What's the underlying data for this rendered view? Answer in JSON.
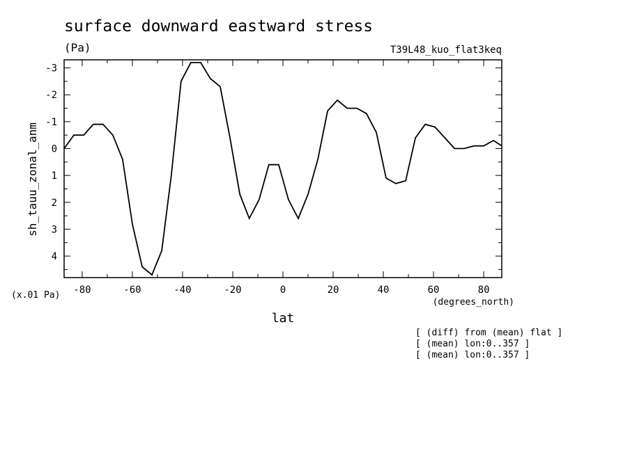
{
  "chart_data": {
    "type": "line",
    "title": "surface downward eastward stress",
    "units": "(Pa)",
    "experiment": "T39L48_kuo_flat3keq",
    "ylabel": "sh_tauu_zonal_anm",
    "scale_note": "(x.01 Pa)",
    "xlabel": "lat",
    "xunits": "(degrees_north)",
    "notes": [
      "[ (diff) from (mean) flat ]",
      "[ (mean) lon:0..357 ]",
      "[ (mean) lon:0..357 ]"
    ],
    "xlim": [
      -87.2,
      87.2
    ],
    "ylim": [
      -3.3,
      4.8
    ],
    "y_inverted": true,
    "xticks": [
      -80,
      -60,
      -40,
      -20,
      0,
      20,
      40,
      60,
      80
    ],
    "yticks": [
      -3,
      -2,
      -1,
      0,
      1,
      2,
      3,
      4
    ],
    "xtick_labels": [
      "-80",
      "-60",
      "-40",
      "-20",
      "0",
      "20",
      "40",
      "60",
      "80"
    ],
    "ytick_labels": [
      "-3",
      "-2",
      "-1",
      "0",
      "1",
      "2",
      "3",
      "4"
    ],
    "series": [
      {
        "x": [
          -87.2,
          -83.3,
          -79.4,
          -75.6,
          -71.7,
          -67.8,
          -63.9,
          -60.0,
          -56.1,
          -52.2,
          -48.3,
          -44.5,
          -40.6,
          -36.7,
          -32.8,
          -28.9,
          -25.0,
          -21.1,
          -17.2,
          -13.4,
          -9.5,
          -5.6,
          -1.7,
          2.2,
          6.1,
          10.0,
          13.9,
          17.8,
          21.7,
          25.6,
          29.5,
          33.3,
          37.2,
          41.1,
          45.0,
          48.9,
          52.8,
          56.7,
          60.6,
          64.5,
          68.4,
          72.2,
          76.1,
          80.0,
          83.9,
          87.2
        ],
        "y": [
          0.0,
          -0.5,
          -0.5,
          -0.9,
          -0.9,
          -0.5,
          0.4,
          2.8,
          4.4,
          4.7,
          3.8,
          1.0,
          -2.5,
          -3.2,
          -3.2,
          -2.6,
          -2.3,
          -0.4,
          1.7,
          2.6,
          1.9,
          0.6,
          0.6,
          1.9,
          2.6,
          1.7,
          0.4,
          -1.4,
          -1.8,
          -1.5,
          -1.5,
          -1.3,
          -0.6,
          1.1,
          1.3,
          1.2,
          -0.4,
          -0.9,
          -0.8,
          -0.4,
          0.0,
          0.0,
          -0.1,
          -0.1,
          -0.3,
          -0.1
        ]
      }
    ]
  }
}
